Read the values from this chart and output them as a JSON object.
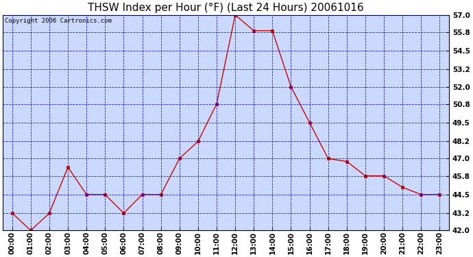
{
  "title": "THSW Index per Hour (°F) (Last 24 Hours) 20061016",
  "copyright": "Copyright 2006 Cartronics.com",
  "hours": [
    "00:00",
    "01:00",
    "02:00",
    "03:00",
    "04:00",
    "05:00",
    "06:00",
    "07:00",
    "08:00",
    "09:00",
    "10:00",
    "11:00",
    "12:00",
    "13:00",
    "14:00",
    "15:00",
    "16:00",
    "17:00",
    "18:00",
    "19:00",
    "20:00",
    "21:00",
    "22:00",
    "23:00"
  ],
  "values": [
    43.2,
    42.0,
    43.2,
    46.4,
    44.5,
    44.5,
    43.2,
    44.5,
    44.5,
    47.0,
    48.2,
    50.8,
    57.0,
    55.9,
    55.9,
    52.0,
    49.5,
    47.0,
    46.8,
    45.8,
    45.8,
    45.0,
    44.5,
    44.5
  ],
  "ylim": [
    42.0,
    57.0
  ],
  "yticks": [
    42.0,
    43.2,
    44.5,
    45.8,
    47.0,
    48.2,
    49.5,
    50.8,
    52.0,
    53.2,
    54.5,
    55.8,
    57.0
  ],
  "line_color": "#cc0000",
  "marker_color": "#cc0000",
  "fig_bg_color": "#ffffff",
  "plot_bg_color": "#ccd9ff",
  "grid_color": "#0000bb",
  "title_color": "#000000",
  "border_color": "#000000",
  "copyright_color": "#000000",
  "title_fontsize": 11,
  "copyright_fontsize": 6.5,
  "tick_fontsize": 7.5,
  "tick_fontweight": "bold"
}
